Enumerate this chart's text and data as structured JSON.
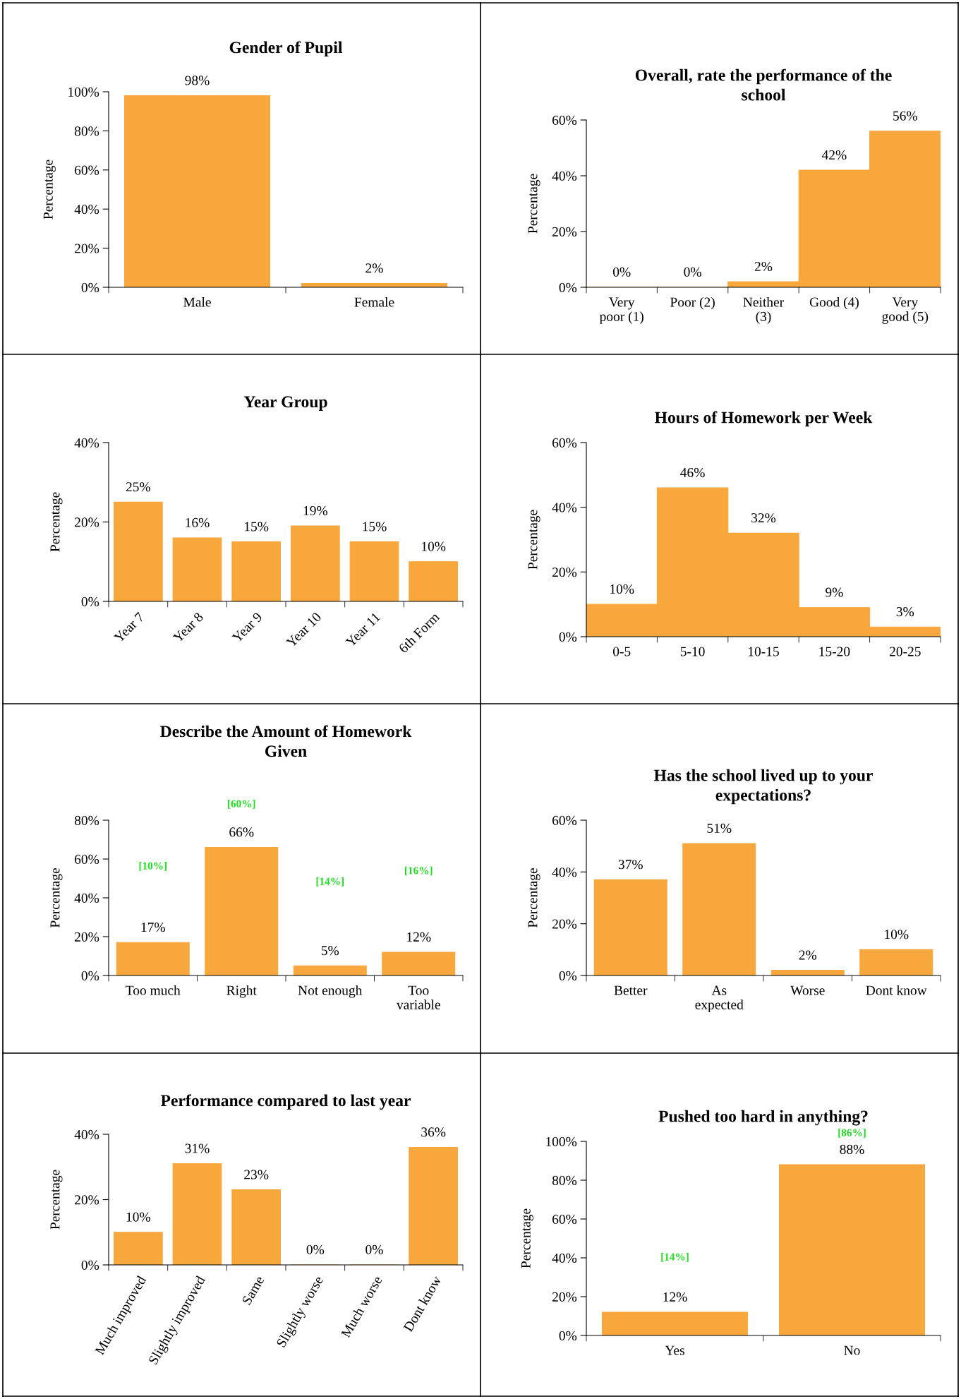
{
  "chart_data": [
    {
      "type": "bar",
      "title": "Gender of Pupil",
      "ylabel": "Percentage",
      "categories": [
        "Male",
        "Female"
      ],
      "values": [
        98,
        2
      ],
      "value_labels": [
        "98%",
        "2%"
      ],
      "color": "#f7a73c",
      "ylim": [
        0,
        100
      ],
      "yticks": [
        {
          "value": 0,
          "label": "0%"
        },
        {
          "value": 20,
          "label": "20%"
        },
        {
          "value": 40,
          "label": "40%"
        },
        {
          "value": 60,
          "label": "60%"
        },
        {
          "value": 80,
          "label": "80%"
        },
        {
          "value": 100,
          "label": "100%"
        }
      ],
      "grid": false,
      "legend": false
    },
    {
      "type": "bar",
      "title": "Overall, rate the performance of the school",
      "ylabel": "Percentage",
      "categories": [
        "Very\npoor (1)",
        "Poor (2)",
        "Neither\n(3)",
        "Good (4)",
        "Very\ngood (5)"
      ],
      "values": [
        0,
        0,
        2,
        42,
        56
      ],
      "value_labels": [
        "0%",
        "0%",
        "2%",
        "42%",
        "56%"
      ],
      "color": "#f7a73c",
      "ylim": [
        0,
        60
      ],
      "yticks": [
        {
          "value": 0,
          "label": "0%"
        },
        {
          "value": 20,
          "label": "20%"
        },
        {
          "value": 40,
          "label": "40%"
        },
        {
          "value": 60,
          "label": "60%"
        }
      ],
      "grid": false,
      "legend": false
    },
    {
      "type": "bar",
      "title": "Year Group",
      "ylabel": "Percentage",
      "categories": [
        "Year 7",
        "Year 8",
        "Year 9",
        "Year 10",
        "Year 11",
        "6th Form"
      ],
      "values": [
        25,
        16,
        15,
        19,
        15,
        10
      ],
      "value_labels": [
        "25%",
        "16%",
        "15%",
        "19%",
        "15%",
        "10%"
      ],
      "color": "#f7a73c",
      "ylim": [
        0,
        40
      ],
      "yticks": [
        {
          "value": 0,
          "label": "0%"
        },
        {
          "value": 20,
          "label": "20%"
        },
        {
          "value": 40,
          "label": "40%"
        }
      ],
      "grid": false,
      "legend": false
    },
    {
      "type": "bar",
      "title": "Hours of Homework per Week",
      "ylabel": "Percentage",
      "categories": [
        "0-5",
        "5-10",
        "10-15",
        "15-20",
        "20-25"
      ],
      "values": [
        10,
        46,
        32,
        9,
        3
      ],
      "value_labels": [
        "10%",
        "46%",
        "32%",
        "9%",
        "3%"
      ],
      "color": "#f7a73c",
      "ylim": [
        0,
        60
      ],
      "yticks": [
        {
          "value": 0,
          "label": "0%"
        },
        {
          "value": 20,
          "label": "20%"
        },
        {
          "value": 40,
          "label": "40%"
        },
        {
          "value": 60,
          "label": "60%"
        }
      ],
      "grid": false,
      "legend": false
    },
    {
      "type": "bar",
      "title": "Describe the Amount of Homework Given",
      "ylabel": "Percentage",
      "categories": [
        "Too much",
        "Right",
        "Not enough",
        "Too\nvariable"
      ],
      "values": [
        17,
        66,
        5,
        12
      ],
      "value_labels": [
        "17%",
        "66%",
        "5%",
        "12%"
      ],
      "color": "#f7a73c",
      "ylim": [
        0,
        80
      ],
      "yticks": [
        {
          "value": 0,
          "label": "0%"
        },
        {
          "value": 20,
          "label": "20%"
        },
        {
          "value": 40,
          "label": "40%"
        },
        {
          "value": 60,
          "label": "60%"
        },
        {
          "value": 80,
          "label": "80%"
        }
      ],
      "grid": false,
      "legend": false,
      "annotations": [
        "[10%]",
        "[60%]",
        "[14%]",
        "[16%]"
      ]
    },
    {
      "type": "bar",
      "title": "Has the school lived up to your expectations?",
      "ylabel": "Percentage",
      "categories": [
        "Better",
        "As\nexpected",
        "Worse",
        "Dont know"
      ],
      "values": [
        37,
        51,
        2,
        10
      ],
      "value_labels": [
        "37%",
        "51%",
        "2%",
        "10%"
      ],
      "color": "#f7a73c",
      "ylim": [
        0,
        60
      ],
      "yticks": [
        {
          "value": 0,
          "label": "0%"
        },
        {
          "value": 20,
          "label": "20%"
        },
        {
          "value": 40,
          "label": "40%"
        },
        {
          "value": 60,
          "label": "60%"
        }
      ],
      "grid": false,
      "legend": false
    },
    {
      "type": "bar",
      "title": "Performance compared to last year",
      "ylabel": "Percentage",
      "categories": [
        "Much improved",
        "Slightly improved",
        "Same",
        "Slightly worse",
        "Much worse",
        "Dont know"
      ],
      "values": [
        10,
        31,
        23,
        0,
        0,
        36
      ],
      "value_labels": [
        "10%",
        "31%",
        "23%",
        "0%",
        "0%",
        "36%"
      ],
      "color": "#f7a73c",
      "ylim": [
        0,
        40
      ],
      "yticks": [
        {
          "value": 0,
          "label": "0%"
        },
        {
          "value": 20,
          "label": "20%"
        },
        {
          "value": 40,
          "label": "40%"
        }
      ],
      "grid": false,
      "legend": false
    },
    {
      "type": "bar",
      "title": "Pushed too hard in anything?",
      "ylabel": "Percentage",
      "categories": [
        "Yes",
        "No"
      ],
      "values": [
        12,
        88
      ],
      "value_labels": [
        "12%",
        "88%"
      ],
      "color": "#f7a73c",
      "ylim": [
        0,
        100
      ],
      "yticks": [
        {
          "value": 0,
          "label": "0%"
        },
        {
          "value": 20,
          "label": "20%"
        },
        {
          "value": 40,
          "label": "40%"
        },
        {
          "value": 60,
          "label": "60%"
        },
        {
          "value": 80,
          "label": "80%"
        },
        {
          "value": 100,
          "label": "100%"
        }
      ],
      "grid": false,
      "legend": false,
      "annotations": [
        "[14%]",
        "[86%]"
      ]
    }
  ]
}
